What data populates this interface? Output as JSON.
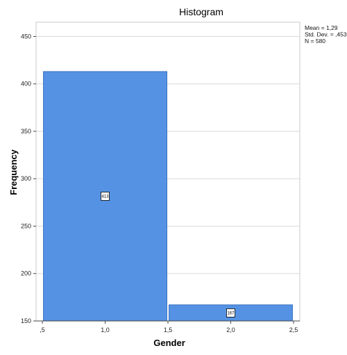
{
  "chart_data": {
    "type": "bar",
    "title": "Histogram",
    "xlabel": "Gender",
    "ylabel": "Frequency",
    "x_ticks": [
      ",5",
      "1,0",
      "1,5",
      "2,0",
      "2,5"
    ],
    "x_tick_values": [
      0.5,
      1.0,
      1.5,
      2.0,
      2.5
    ],
    "xlim": [
      0.45,
      2.55
    ],
    "ylim": [
      150,
      465
    ],
    "y_ticks": [
      150,
      200,
      250,
      300,
      350,
      400,
      450
    ],
    "bars": [
      {
        "x0": 0.5,
        "x1": 1.5,
        "value": 413,
        "label": "413"
      },
      {
        "x0": 1.5,
        "x1": 2.5,
        "value": 167,
        "label": "167"
      }
    ],
    "grid": "horizontal",
    "stats": [
      "Mean = 1,29",
      "Std. Dev. = ,453",
      "N = 580"
    ],
    "bar_color": "#5592e3",
    "bar_stroke": "#3b72c2"
  }
}
